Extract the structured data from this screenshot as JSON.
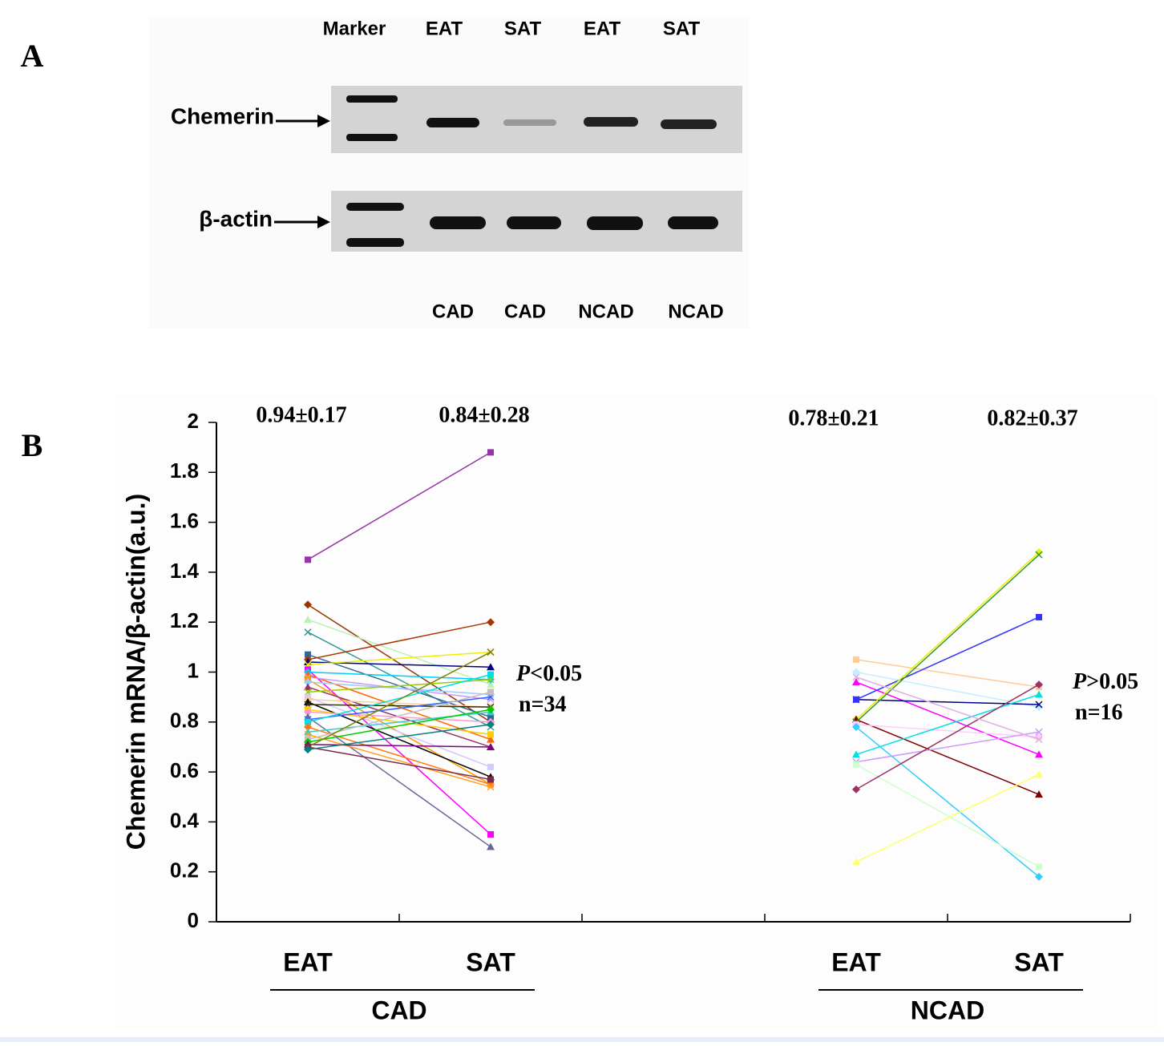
{
  "panel_labels": [
    "A",
    "B"
  ],
  "gel": {
    "lanes_top": [
      "Marker",
      "EAT",
      "SAT",
      "EAT",
      "SAT"
    ],
    "rows": [
      "Chemerin",
      "β-actin"
    ],
    "lanes_bottom": [
      "CAD",
      "CAD",
      "NCAD",
      "NCAD"
    ]
  },
  "chart_data": {
    "type": "paired-line",
    "ylabel": "Chemerin mRNA/β-actin(a.u.)",
    "ylim": [
      0,
      2
    ],
    "yticks": [
      0,
      0.2,
      0.4,
      0.6,
      0.8,
      1,
      1.2,
      1.4,
      1.6,
      1.8,
      2
    ],
    "groups": [
      {
        "name": "CAD",
        "categories": [
          "EAT",
          "SAT"
        ],
        "stat_labels": [
          "0.94±0.17",
          "0.84±0.28"
        ],
        "p_symbol": "P",
        "p_text": "<0.05",
        "n_label": "n=34",
        "pairs": [
          {
            "color": "#9933aa",
            "values": [
              1.45,
              1.88
            ]
          },
          {
            "color": "#993300",
            "values": [
              1.27,
              0.8
            ]
          },
          {
            "color": "#b8f0b8",
            "values": [
              1.21,
              0.95
            ]
          },
          {
            "color": "#339999",
            "values": [
              1.16,
              0.78
            ]
          },
          {
            "color": "#336699",
            "values": [
              1.07,
              0.82
            ]
          },
          {
            "color": "#aa3300",
            "values": [
              1.05,
              1.2
            ]
          },
          {
            "color": "#000080",
            "values": [
              1.04,
              1.02
            ]
          },
          {
            "color": "#eeee00",
            "values": [
              1.03,
              1.08
            ]
          },
          {
            "color": "#ff00ff",
            "values": [
              1.01,
              0.35
            ]
          },
          {
            "color": "#00ccff",
            "values": [
              1.0,
              0.97
            ]
          },
          {
            "color": "#ff6600",
            "values": [
              0.99,
              0.73
            ]
          },
          {
            "color": "#cc99ff",
            "values": [
              0.98,
              0.89
            ]
          },
          {
            "color": "#ff9900",
            "values": [
              0.97,
              0.55
            ]
          },
          {
            "color": "#99ccff",
            "values": [
              0.96,
              0.91
            ]
          },
          {
            "color": "#993366",
            "values": [
              0.94,
              0.7
            ]
          },
          {
            "color": "#99cc00",
            "values": [
              0.92,
              0.97
            ]
          },
          {
            "color": "#ccccff",
            "values": [
              0.9,
              0.62
            ]
          },
          {
            "color": "#ffcc99",
            "values": [
              0.89,
              0.86
            ]
          },
          {
            "color": "#000000",
            "values": [
              0.88,
              0.58
            ]
          },
          {
            "color": "#333300",
            "values": [
              0.87,
              0.86
            ]
          },
          {
            "color": "#ffcc00",
            "values": [
              0.85,
              0.75
            ]
          },
          {
            "color": "#ff99cc",
            "values": [
              0.84,
              0.8
            ]
          },
          {
            "color": "#666699",
            "values": [
              0.82,
              0.3
            ]
          },
          {
            "color": "#3366ff",
            "values": [
              0.81,
              0.9
            ]
          },
          {
            "color": "#00e0e0",
            "values": [
              0.8,
              0.99
            ]
          },
          {
            "color": "#ff7711",
            "values": [
              0.78,
              0.55
            ]
          },
          {
            "color": "#33cccc",
            "values": [
              0.76,
              0.84
            ]
          },
          {
            "color": "#ffa020",
            "values": [
              0.75,
              0.54
            ]
          },
          {
            "color": "#c0c0c0",
            "values": [
              0.73,
              0.92
            ]
          },
          {
            "color": "#00cc00",
            "values": [
              0.72,
              0.85
            ]
          },
          {
            "color": "#800080",
            "values": [
              0.71,
              0.7
            ]
          },
          {
            "color": "#808000",
            "values": [
              0.7,
              1.08
            ]
          },
          {
            "color": "#7a2850",
            "values": [
              0.7,
              0.57
            ]
          },
          {
            "color": "#008080",
            "values": [
              0.69,
              0.79
            ]
          }
        ]
      },
      {
        "name": "NCAD",
        "categories": [
          "EAT",
          "SAT"
        ],
        "stat_labels": [
          "0.78±0.21",
          "0.82±0.37"
        ],
        "p_symbol": "P",
        "p_text": ">0.05",
        "n_label": "n=16",
        "pairs": [
          {
            "color": "#ffcc99",
            "values": [
              1.05,
              0.94
            ]
          },
          {
            "color": "#bff0ff",
            "values": [
              1.0,
              0.86
            ]
          },
          {
            "color": "#ff00ff",
            "values": [
              0.96,
              0.67
            ]
          },
          {
            "color": "#000080",
            "values": [
              0.89,
              0.87
            ]
          },
          {
            "color": "#3333ff",
            "values": [
              0.89,
              1.22
            ]
          },
          {
            "color": "#eeee00",
            "values": [
              0.81,
              1.48
            ]
          },
          {
            "color": "#800000",
            "values": [
              0.81,
              0.51
            ]
          },
          {
            "color": "#339933",
            "values": [
              0.8,
              1.47
            ]
          },
          {
            "color": "#ffccff",
            "values": [
              0.79,
              0.74
            ]
          },
          {
            "color": "#33ccff",
            "values": [
              0.78,
              0.18
            ]
          },
          {
            "color": "#00e0e0",
            "values": [
              0.67,
              0.91
            ]
          },
          {
            "color": "#cc99ff",
            "values": [
              0.64,
              0.76
            ]
          },
          {
            "color": "#ccffcc",
            "values": [
              0.63,
              0.22
            ]
          },
          {
            "color": "#993366",
            "values": [
              0.53,
              0.95
            ]
          },
          {
            "color": "#ffff66",
            "values": [
              0.24,
              0.59
            ]
          },
          {
            "color": "#e0b0e0",
            "values": [
              0.98,
              0.73
            ]
          }
        ]
      }
    ]
  }
}
